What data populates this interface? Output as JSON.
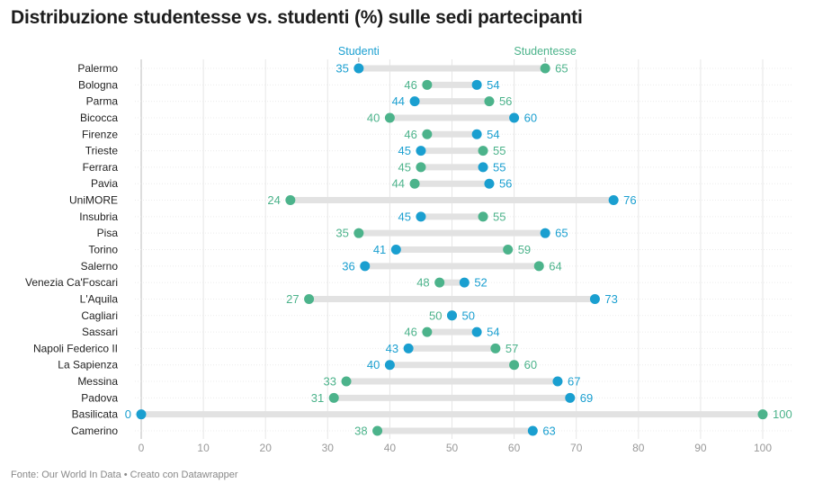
{
  "chart_data": {
    "type": "dot-range",
    "title": "Distribuzione studentesse vs. studenti (%) sulle sedi partecipanti",
    "source": "Fonte: Our World In Data • Creato con Datawrapper",
    "xlim": [
      0,
      100
    ],
    "xticks": [
      0,
      10,
      20,
      30,
      40,
      50,
      60,
      70,
      80,
      90,
      100
    ],
    "colors": {
      "Studenti": "#1a9fd0",
      "Studentesse": "#4cb38b",
      "range": "#e2e2e2"
    },
    "series_names": [
      "Studenti",
      "Studentesse"
    ],
    "categories": [
      "Palermo",
      "Bologna",
      "Parma",
      "Bicocca",
      "Firenze",
      "Trieste",
      "Ferrara",
      "Pavia",
      "UniMORE",
      "Insubria",
      "Pisa",
      "Torino",
      "Salerno",
      "Venezia Ca'Foscari",
      "L'Aquila",
      "Cagliari",
      "Sassari",
      "Napoli Federico II",
      "La Sapienza",
      "Messina",
      "Padova",
      "Basilicata",
      "Camerino"
    ],
    "series": [
      {
        "name": "Studenti",
        "values": [
          35,
          54,
          44,
          60,
          54,
          45,
          55,
          56,
          76,
          45,
          65,
          41,
          36,
          52,
          73,
          50,
          54,
          43,
          40,
          67,
          69,
          0,
          63
        ]
      },
      {
        "name": "Studentesse",
        "values": [
          65,
          46,
          56,
          40,
          46,
          55,
          45,
          44,
          24,
          55,
          35,
          59,
          64,
          48,
          27,
          50,
          46,
          57,
          60,
          33,
          31,
          100,
          38
        ]
      }
    ]
  }
}
